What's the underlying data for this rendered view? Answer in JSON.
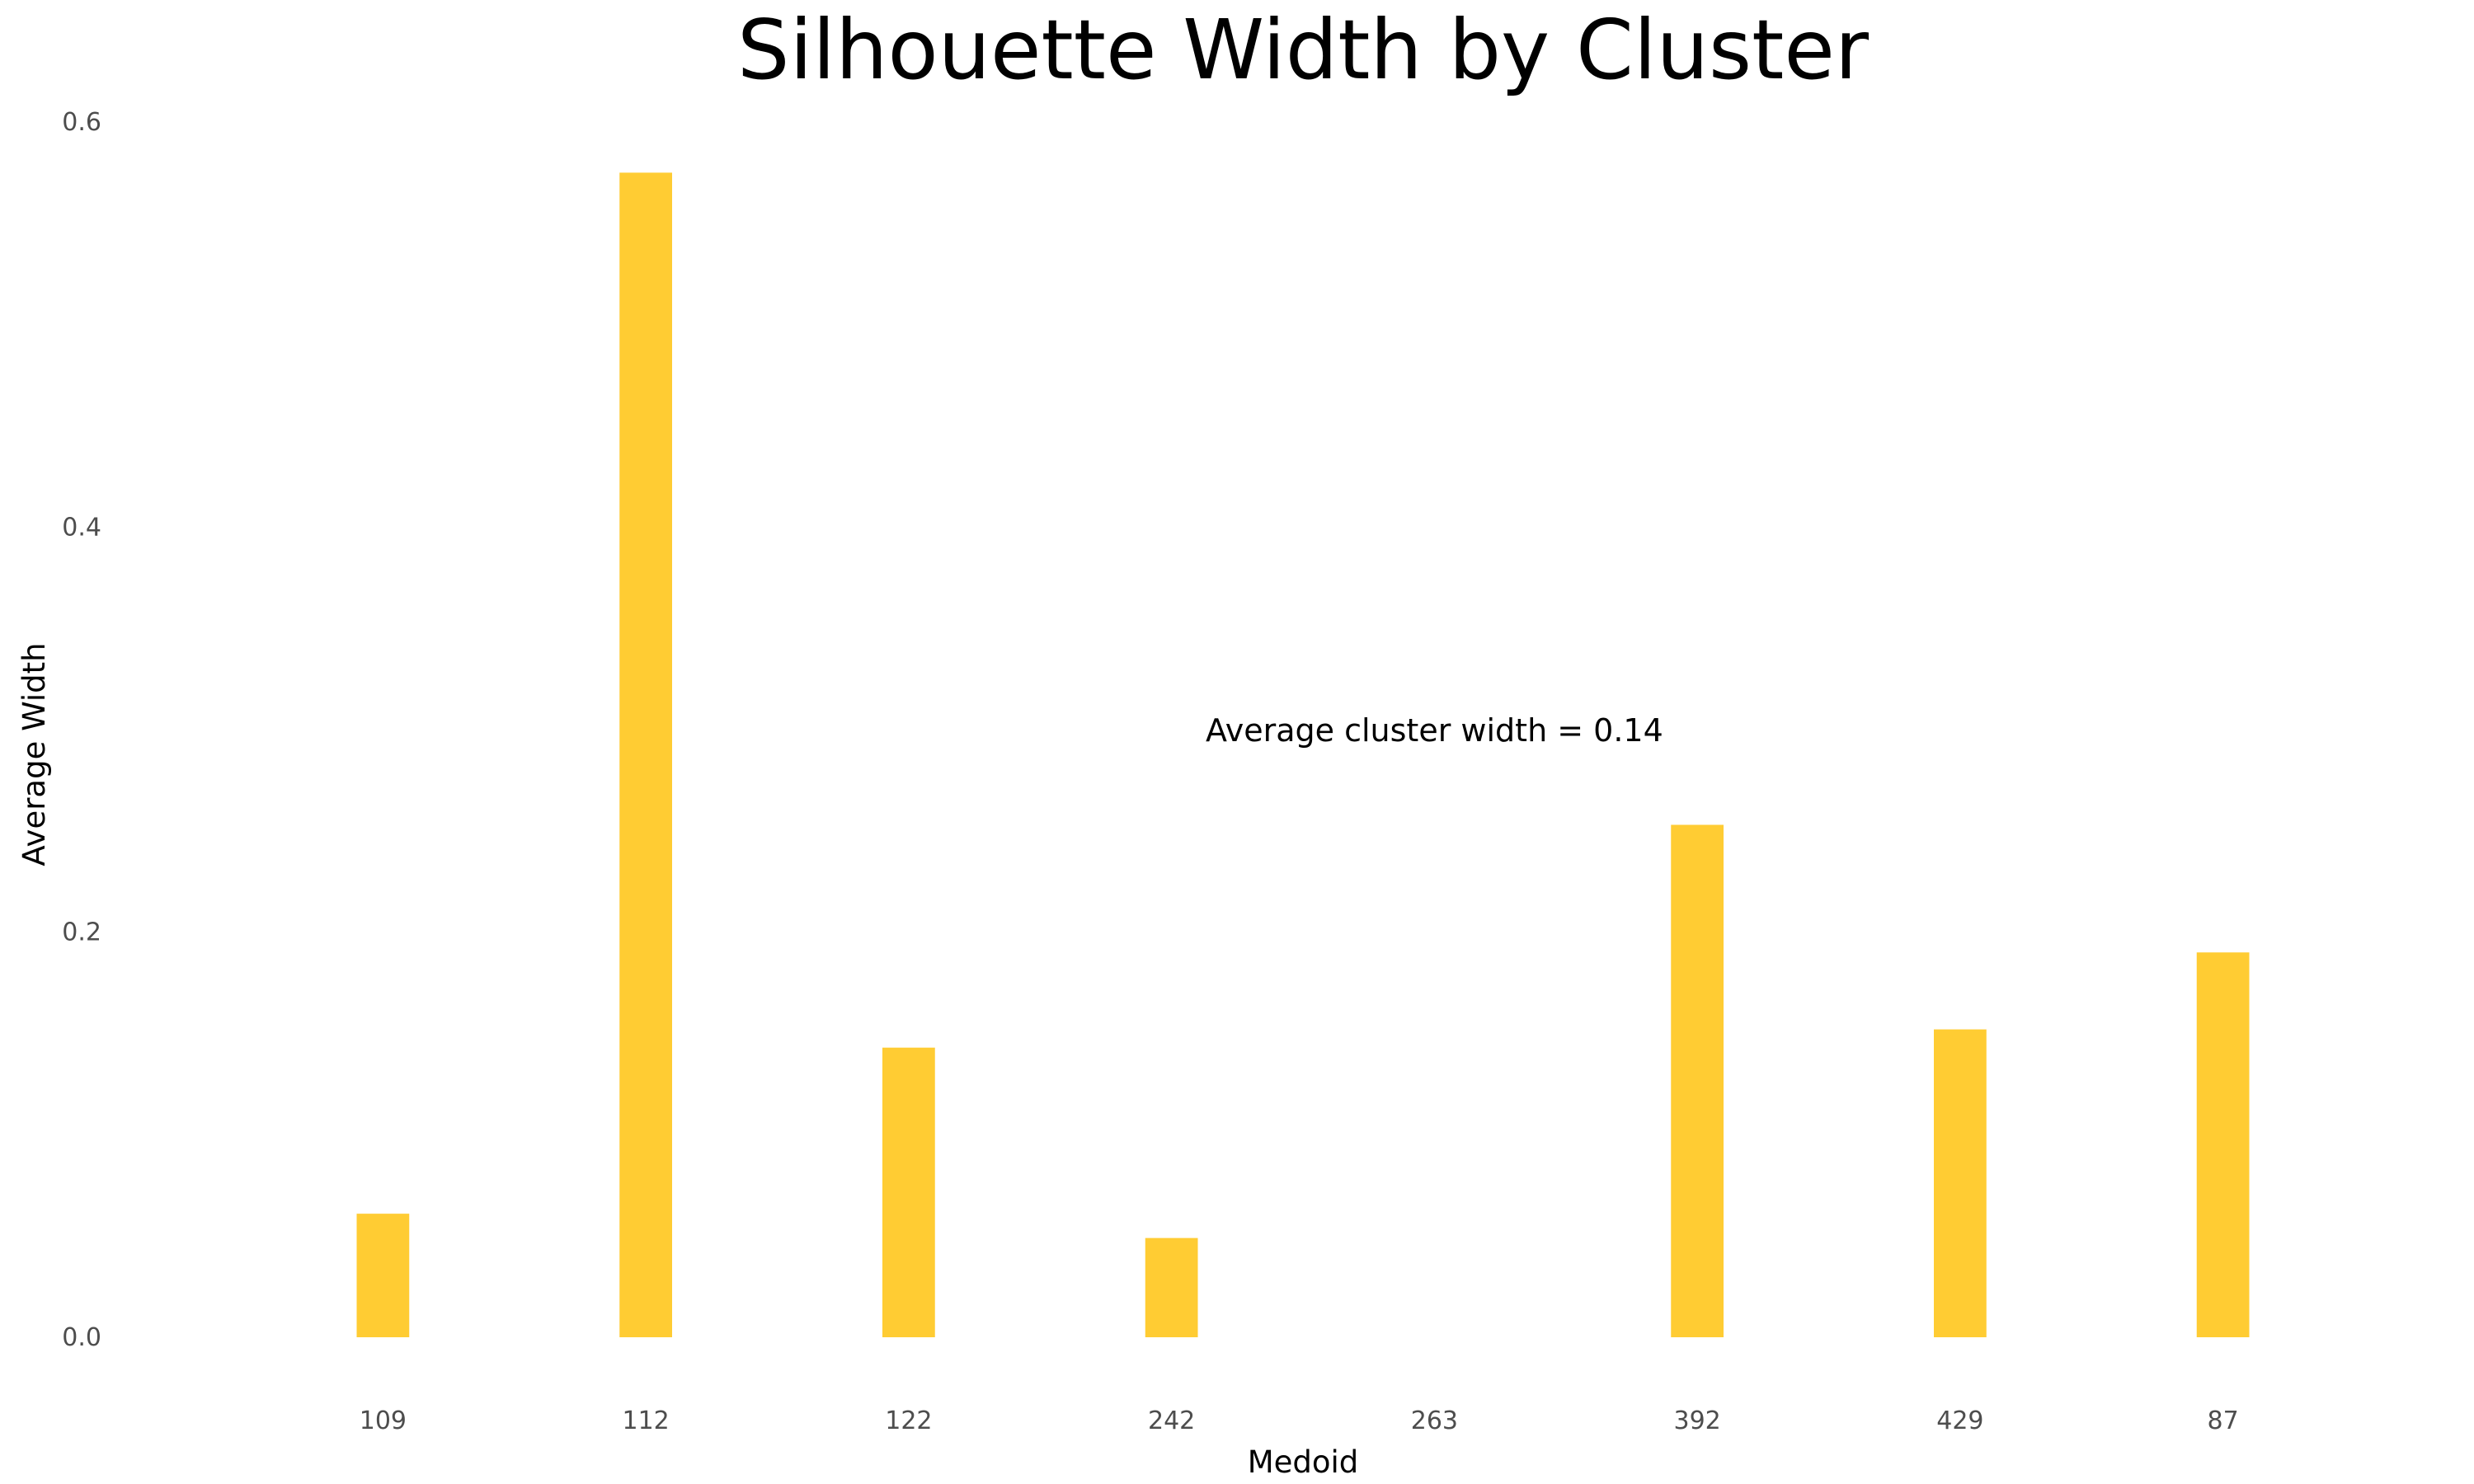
{
  "chart_data": {
    "type": "bar",
    "title": "Silhouette Width by Cluster",
    "xlabel": "Medoid",
    "ylabel": "Average Width",
    "categories": [
      "109",
      "112",
      "122",
      "242",
      "263",
      "392",
      "429",
      "87"
    ],
    "values": [
      0.061,
      0.575,
      0.143,
      0.049,
      0.0,
      0.253,
      0.152,
      0.19
    ],
    "ylim": [
      0,
      0.6
    ],
    "yticks": [
      0.0,
      0.2,
      0.4,
      0.6
    ],
    "ytick_labels": [
      "0.0",
      "0.2",
      "0.4",
      "0.6"
    ],
    "bar_color": "#FFCC33",
    "grid": false,
    "annotation": {
      "text": "Average cluster width = 0.14",
      "x_category": "263",
      "y": 0.3
    }
  }
}
